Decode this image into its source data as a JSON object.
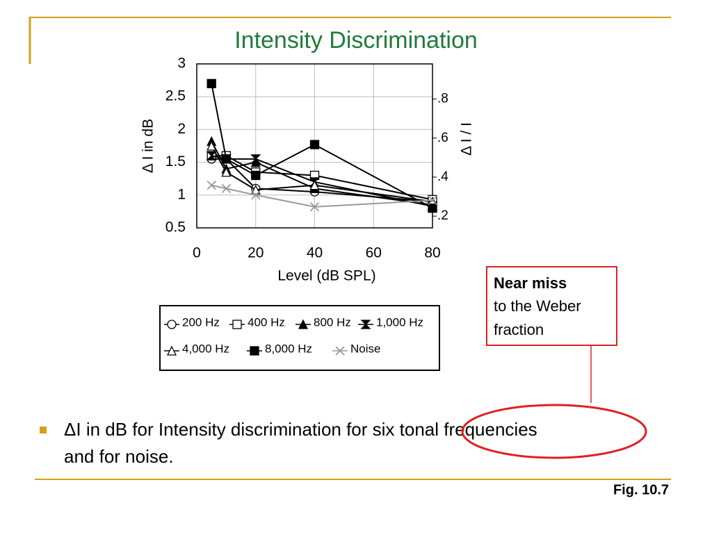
{
  "slide": {
    "title": "Intensity Discrimination",
    "callout_bold": "Near miss",
    "callout_lines": [
      "to the Weber",
      "fraction"
    ],
    "bullet_lines": [
      "ΔI in dB for Intensity discrimination for six tonal frequencies",
      "and for noise."
    ],
    "figure_label": "Fig. 10.7"
  },
  "chart_data": {
    "type": "line",
    "x_label": "Level (dB SPL)",
    "y_label": "Δ I in dB",
    "y2_label": "Δ I / I",
    "x": [
      5,
      10,
      20,
      40,
      80
    ],
    "xlim": [
      0,
      80
    ],
    "xticks": [
      0,
      20,
      40,
      60,
      80
    ],
    "ylim": [
      0.5,
      3
    ],
    "yticks": [
      0.5,
      1,
      1.5,
      2,
      2.5,
      3
    ],
    "y2lim": [
      0.14,
      0.98
    ],
    "y2ticks": [
      {
        "value": 0.2,
        "label": ".2"
      },
      {
        "value": 0.4,
        "label": ".4"
      },
      {
        "value": 0.6,
        "label": ".6"
      },
      {
        "value": 0.8,
        "label": ".8"
      }
    ],
    "grid": true,
    "series": [
      {
        "name": "200 Hz",
        "color": "#000000",
        "marker": "circle",
        "filled": false,
        "values": [
          1.55,
          1.55,
          1.1,
          1.05,
          0.9
        ]
      },
      {
        "name": "400 Hz",
        "color": "#000000",
        "marker": "square",
        "filled": false,
        "values": [
          1.6,
          1.6,
          1.35,
          1.3,
          0.93
        ]
      },
      {
        "name": "800 Hz",
        "color": "#000000",
        "marker": "triangle",
        "filled": true,
        "values": [
          1.82,
          1.4,
          1.5,
          1.1,
          0.85
        ]
      },
      {
        "name": "1,000 Hz",
        "color": "#000000",
        "marker": "bowtie",
        "filled": true,
        "values": [
          1.6,
          1.55,
          1.55,
          1.2,
          0.83
        ]
      },
      {
        "name": "4,000 Hz",
        "color": "#000000",
        "marker": "triangle",
        "filled": false,
        "values": [
          1.75,
          1.35,
          1.08,
          1.15,
          0.9
        ]
      },
      {
        "name": "8,000 Hz",
        "color": "#000000",
        "marker": "square",
        "filled": true,
        "values": [
          2.7,
          1.55,
          1.3,
          1.77,
          0.8
        ]
      },
      {
        "name": "Noise",
        "color": "#999999",
        "marker": "x",
        "filled": false,
        "values": [
          1.15,
          1.1,
          1.0,
          0.82,
          0.92
        ]
      }
    ]
  }
}
